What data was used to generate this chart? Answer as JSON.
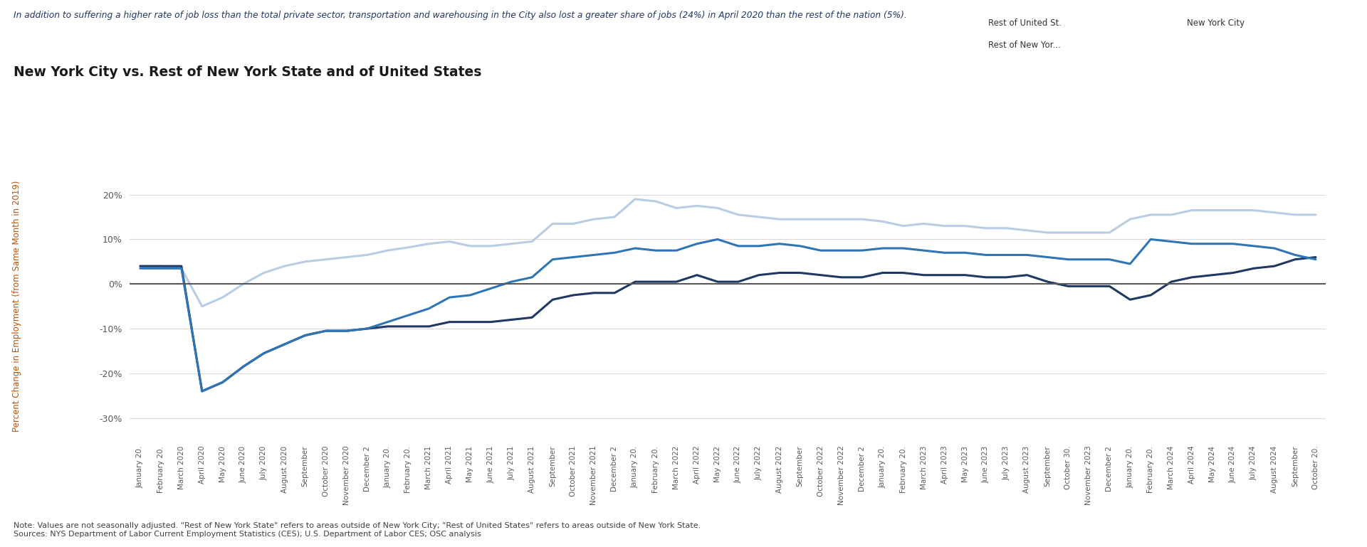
{
  "title": "New York City vs. Rest of New York State and of United States",
  "subtitle": "In addition to suffering a higher rate of job loss than the total private sector, transportation and warehousing in the City also lost a greater share of jobs (24%) in April 2020 than the rest of the nation (5%).",
  "ylabel": "Percent Change in Employment (from Same Month in 2019)",
  "note": "Note: Values are not seasonally adjusted. \"Rest of New York State\" refers to areas outside of New York City; \"Rest of United States\" refers to areas outside of New York State.\nSources: NYS Department of Labor Current Employment Statistics (CES); U.S. Department of Labor CES; OSC analysis",
  "legend_labels": [
    "Rest of United St.",
    "New York City",
    "Rest of New Yor..."
  ],
  "colors": {
    "rest_us": "#b8cce4",
    "nyc": "#1f3864",
    "rest_ny": "#2e75b6",
    "zero_line": "#595959",
    "subtitle": "#1f3864",
    "title": "#1a1a1a",
    "note": "#404040",
    "ylabel": "#c05000",
    "grid": "#d9d9d9",
    "tick_label": "#595959"
  },
  "ylim": [
    -0.35,
    0.25
  ],
  "yticks": [
    -0.3,
    -0.2,
    -0.1,
    0.0,
    0.1,
    0.2
  ],
  "x_labels": [
    "January 20.",
    "February 20.",
    "March 2020",
    "April 2020",
    "May 2020",
    "June 2020",
    "July 2020",
    "August 2020",
    "September",
    "October 2020",
    "November 2020",
    "December 2",
    "January 20.",
    "February 20.",
    "March 2021",
    "April 2021",
    "May 2021",
    "June 2021",
    "July 2021",
    "August 2021",
    "September",
    "October 2021",
    "November 2021",
    "December 2",
    "January 20.",
    "February 20.",
    "March 2022",
    "April 2022",
    "May 2022",
    "June 2022",
    "July 2022",
    "August 2022",
    "September",
    "October 2022",
    "November 2022",
    "December 2",
    "January 20.",
    "February 20.",
    "March 2023",
    "April 2023",
    "May 2023",
    "June 2023",
    "July 2023",
    "August 2023",
    "September",
    "October 30.",
    "November 2023",
    "December 2",
    "January 20.",
    "February 20.",
    "March 2024",
    "April 2024",
    "May 2024",
    "June 2024",
    "July 2024",
    "August 2024",
    "September",
    "October 20."
  ],
  "rest_us_data": [
    0.04,
    0.04,
    0.035,
    -0.05,
    -0.03,
    0.0,
    0.025,
    0.04,
    0.05,
    0.055,
    0.06,
    0.065,
    0.075,
    0.082,
    0.09,
    0.095,
    0.085,
    0.085,
    0.09,
    0.095,
    0.135,
    0.135,
    0.145,
    0.15,
    0.19,
    0.185,
    0.17,
    0.175,
    0.17,
    0.155,
    0.15,
    0.145,
    0.145,
    0.145,
    0.145,
    0.145,
    0.14,
    0.13,
    0.135,
    0.13,
    0.13,
    0.125,
    0.125,
    0.12,
    0.115,
    0.115,
    0.115,
    0.115,
    0.145,
    0.155,
    0.155,
    0.165,
    0.165,
    0.165,
    0.165,
    0.16,
    0.155,
    0.155
  ],
  "nyc_data": [
    0.04,
    0.04,
    0.04,
    -0.24,
    -0.22,
    -0.185,
    -0.155,
    -0.135,
    -0.115,
    -0.105,
    -0.105,
    -0.1,
    -0.095,
    -0.095,
    -0.095,
    -0.085,
    -0.085,
    -0.085,
    -0.08,
    -0.075,
    -0.035,
    -0.025,
    -0.02,
    -0.02,
    0.005,
    0.005,
    0.005,
    0.02,
    0.005,
    0.005,
    0.02,
    0.025,
    0.025,
    0.02,
    0.015,
    0.015,
    0.025,
    0.025,
    0.02,
    0.02,
    0.02,
    0.015,
    0.015,
    0.02,
    0.005,
    -0.005,
    -0.005,
    -0.005,
    -0.035,
    -0.025,
    0.005,
    0.015,
    0.02,
    0.025,
    0.035,
    0.04,
    0.055,
    0.06
  ],
  "rest_ny_data": [
    0.035,
    0.035,
    0.035,
    -0.24,
    -0.22,
    -0.185,
    -0.155,
    -0.135,
    -0.115,
    -0.105,
    -0.105,
    -0.1,
    -0.085,
    -0.07,
    -0.055,
    -0.03,
    -0.025,
    -0.01,
    0.005,
    0.015,
    0.055,
    0.06,
    0.065,
    0.07,
    0.08,
    0.075,
    0.075,
    0.09,
    0.1,
    0.085,
    0.085,
    0.09,
    0.085,
    0.075,
    0.075,
    0.075,
    0.08,
    0.08,
    0.075,
    0.07,
    0.07,
    0.065,
    0.065,
    0.065,
    0.06,
    0.055,
    0.055,
    0.055,
    0.045,
    0.1,
    0.095,
    0.09,
    0.09,
    0.09,
    0.085,
    0.08,
    0.065,
    0.055
  ]
}
